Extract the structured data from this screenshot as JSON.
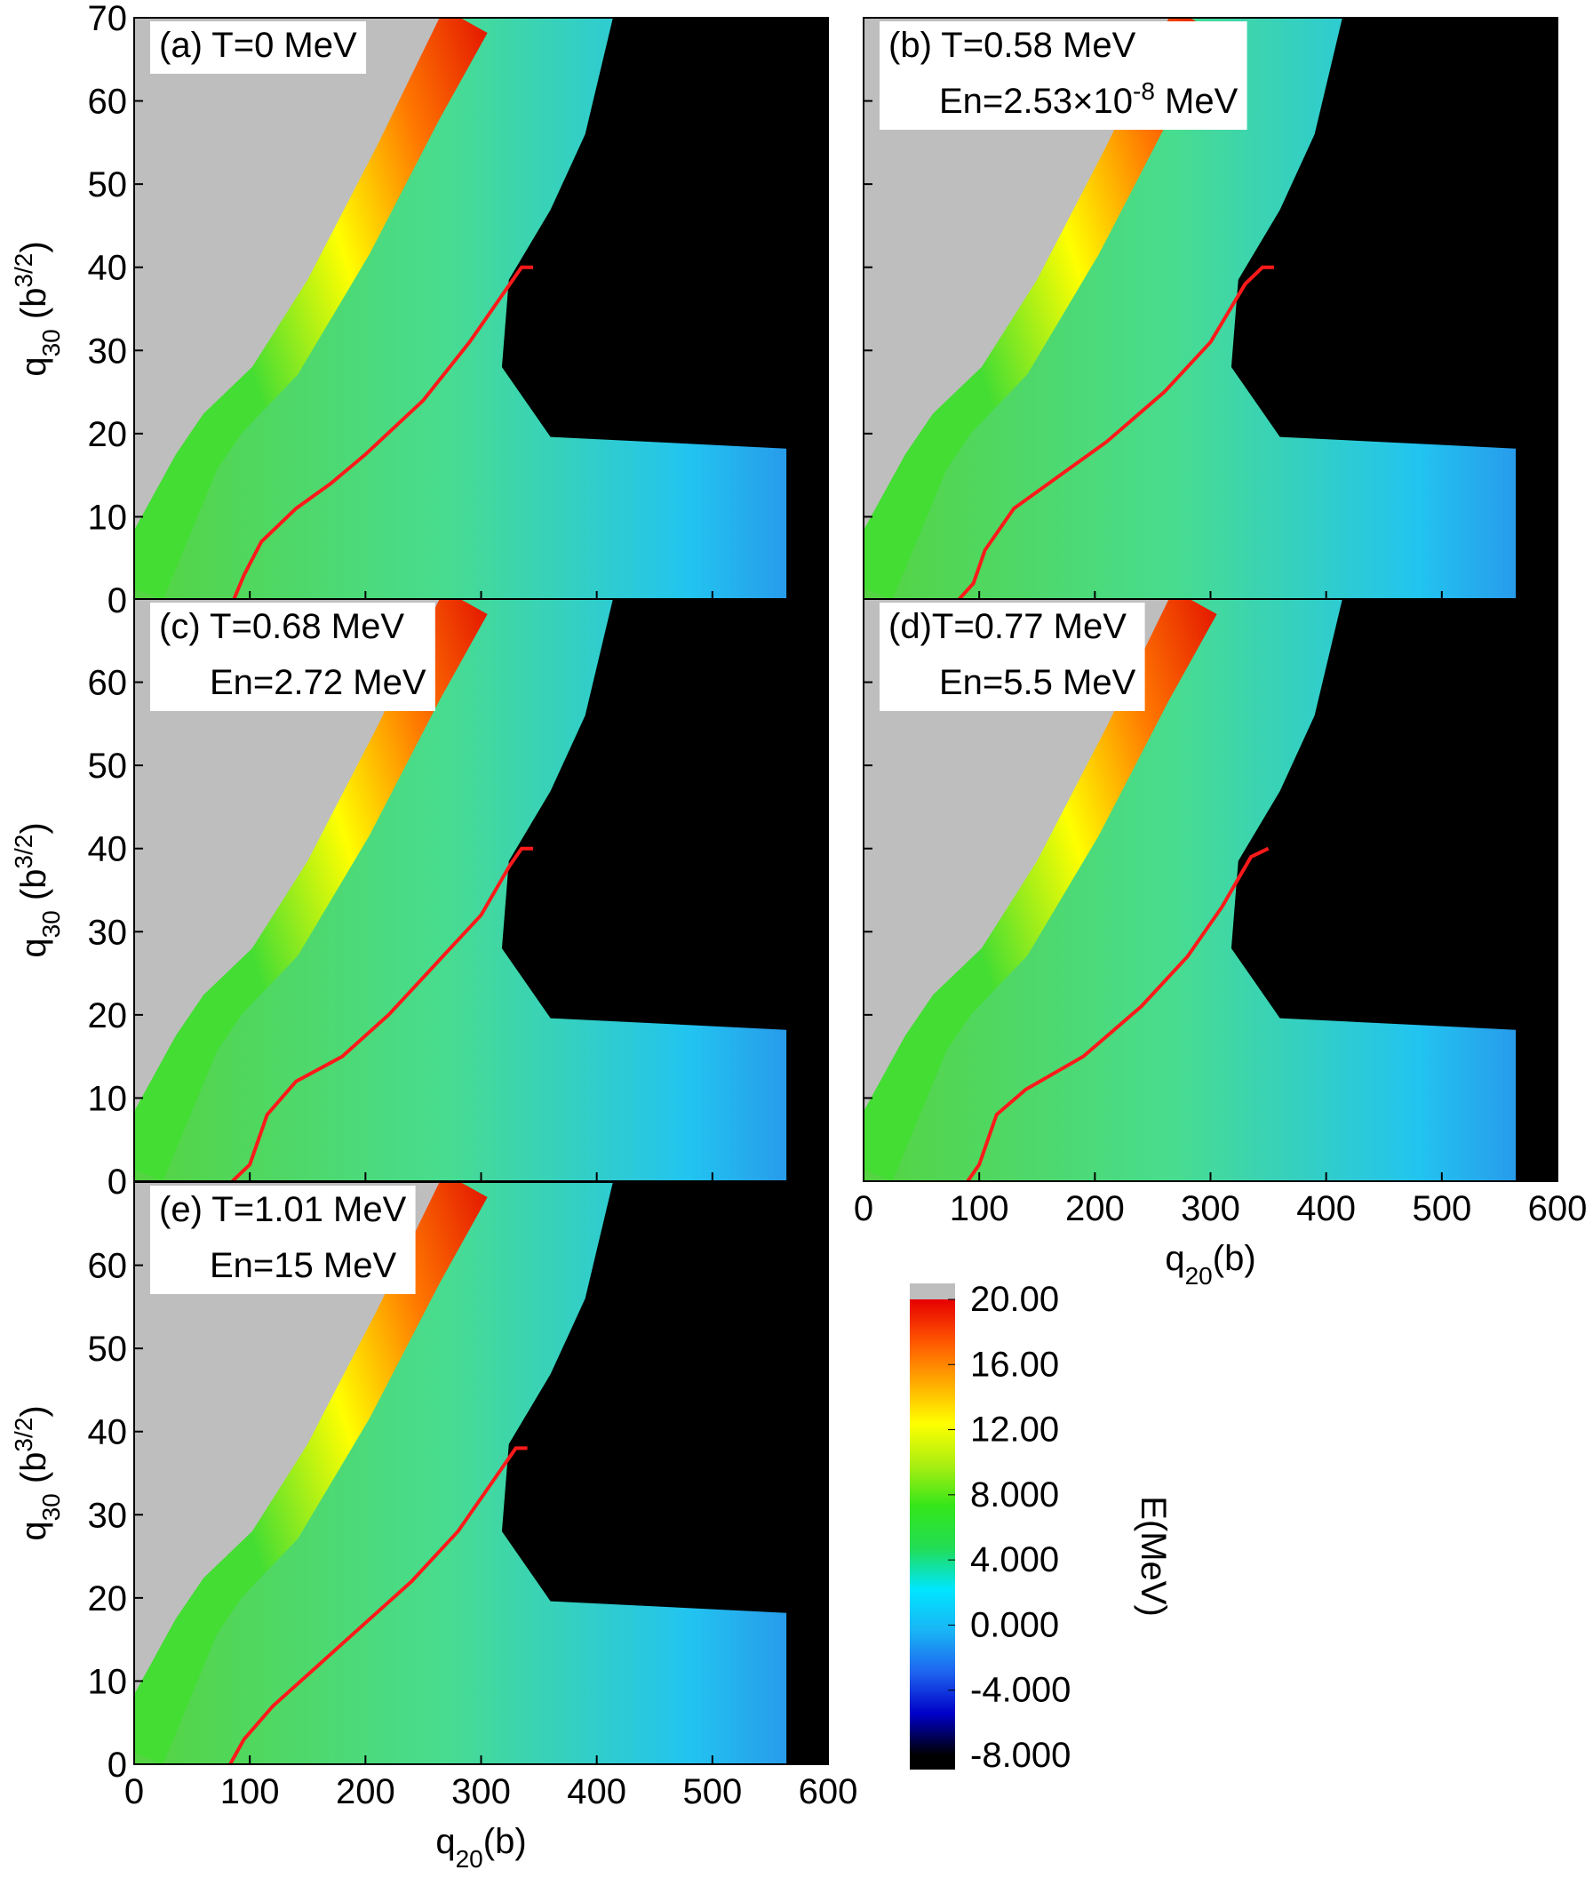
{
  "chart_data": [
    {
      "type": "contour",
      "title": "(a) T=0 MeV",
      "subtitle": null,
      "xlim": [
        0,
        600
      ],
      "ylim": [
        0,
        70
      ],
      "xticks": [
        0,
        100,
        200,
        300,
        400,
        500,
        600
      ],
      "yticks": [
        0,
        10,
        20,
        30,
        40,
        50,
        60,
        70
      ],
      "show_xticklabels": false,
      "show_yticklabels": true,
      "ylabel": [
        {
          "text": "q"
        },
        {
          "text": "30",
          "shift": "sub"
        },
        {
          "text": " (b"
        },
        {
          "text": "3/2",
          "shift": "super"
        },
        {
          "text": ")"
        }
      ],
      "path": {
        "color": "#ff1a1a",
        "x": [
          86,
          95,
          110,
          140,
          170,
          200,
          250,
          290,
          320,
          335,
          345
        ],
        "y": [
          0,
          3,
          7,
          11,
          14,
          17.5,
          24,
          31,
          37,
          40,
          40
        ]
      }
    },
    {
      "type": "contour",
      "title": "(b) T=0.58 MeV",
      "subtitle": [
        {
          "text": "En=2.53×10"
        },
        {
          "text": "-8",
          "shift": "super"
        },
        {
          "text": " MeV"
        }
      ],
      "xlim": [
        0,
        600
      ],
      "ylim": [
        0,
        70
      ],
      "xticks": [
        0,
        100,
        200,
        300,
        400,
        500,
        600
      ],
      "yticks": [
        0,
        10,
        20,
        30,
        40,
        50,
        60,
        70
      ],
      "show_xticklabels": false,
      "show_yticklabels": false,
      "path": {
        "color": "#ff1a1a",
        "x": [
          82,
          95,
          105,
          130,
          170,
          210,
          260,
          300,
          330,
          345,
          355
        ],
        "y": [
          0,
          2,
          6,
          11,
          15,
          19,
          25,
          31,
          38,
          40,
          40
        ]
      }
    },
    {
      "type": "contour",
      "title": "(c) T=0.68 MeV",
      "subtitle": [
        {
          "text": "En=2.72 MeV"
        }
      ],
      "xlim": [
        0,
        600
      ],
      "ylim": [
        0,
        70
      ],
      "xticks": [
        0,
        100,
        200,
        300,
        400,
        500,
        600
      ],
      "yticks": [
        0,
        10,
        20,
        30,
        40,
        50,
        60
      ],
      "show_xticklabels": false,
      "show_yticklabels": true,
      "ylabel": [
        {
          "text": "q"
        },
        {
          "text": "30",
          "shift": "sub"
        },
        {
          "text": " (b"
        },
        {
          "text": "3/2",
          "shift": "super"
        },
        {
          "text": ")"
        }
      ],
      "path": {
        "color": "#ff1a1a",
        "x": [
          85,
          100,
          115,
          140,
          180,
          220,
          260,
          300,
          325,
          335,
          345
        ],
        "y": [
          0,
          2,
          8,
          12,
          15,
          20,
          26,
          32,
          38,
          40,
          40
        ]
      }
    },
    {
      "type": "contour",
      "title": "(d)T=0.77 MeV",
      "subtitle": [
        {
          "text": "En=5.5 MeV"
        }
      ],
      "xlim": [
        0,
        600
      ],
      "ylim": [
        0,
        70
      ],
      "xticks": [
        0,
        100,
        200,
        300,
        400,
        500,
        600
      ],
      "yticks": [
        0,
        10,
        20,
        30,
        40,
        50,
        60
      ],
      "show_xticklabels": true,
      "show_yticklabels": false,
      "xlabel": [
        {
          "text": "q"
        },
        {
          "text": "20",
          "shift": "sub"
        },
        {
          "text": "(b)"
        }
      ],
      "path": {
        "color": "#ff1a1a",
        "x": [
          90,
          100,
          115,
          140,
          190,
          240,
          280,
          310,
          335,
          350
        ],
        "y": [
          0,
          2,
          8,
          11,
          15,
          21,
          27,
          33,
          39,
          40
        ]
      }
    },
    {
      "type": "contour",
      "title": "(e) T=1.01 MeV",
      "subtitle": [
        {
          "text": "En=15 MeV"
        }
      ],
      "xlim": [
        0,
        600
      ],
      "ylim": [
        0,
        70
      ],
      "xticks": [
        0,
        100,
        200,
        300,
        400,
        500,
        600
      ],
      "yticks": [
        0,
        10,
        20,
        30,
        40,
        50,
        60
      ],
      "show_xticklabels": true,
      "show_yticklabels": true,
      "xlabel": [
        {
          "text": "q"
        },
        {
          "text": "20",
          "shift": "sub"
        },
        {
          "text": "(b)"
        }
      ],
      "ylabel": [
        {
          "text": "q"
        },
        {
          "text": "30",
          "shift": "sub"
        },
        {
          "text": " (b"
        },
        {
          "text": "3/2",
          "shift": "super"
        },
        {
          "text": ")"
        }
      ],
      "path": {
        "color": "#ff1a1a",
        "x": [
          83,
          95,
          120,
          160,
          200,
          240,
          280,
          310,
          330,
          340
        ],
        "y": [
          0,
          3,
          7,
          12,
          17,
          22,
          28,
          34,
          38,
          38
        ]
      }
    }
  ],
  "colorbar": {
    "label": "E(MeV)",
    "clim": [
      -8,
      20
    ],
    "ticks": [
      {
        "value": 20,
        "label": "20.00"
      },
      {
        "value": 16,
        "label": "16.00"
      },
      {
        "value": 12,
        "label": "12.00"
      },
      {
        "value": 8,
        "label": "8.000"
      },
      {
        "value": 4,
        "label": "4.000"
      },
      {
        "value": 0,
        "label": "0.000"
      },
      {
        "value": -4,
        "label": "-4.000"
      },
      {
        "value": -8,
        "label": "-8.000"
      }
    ],
    "colors": [
      "#000000",
      "#0000c8",
      "#1e64f0",
      "#19b4f5",
      "#00e6ff",
      "#22dd55",
      "#33e61a",
      "#aaee11",
      "#ffff00",
      "#ffaa00",
      "#ff5500",
      "#e60000"
    ],
    "over_color": "#bebebe",
    "under_color": "#000000"
  }
}
